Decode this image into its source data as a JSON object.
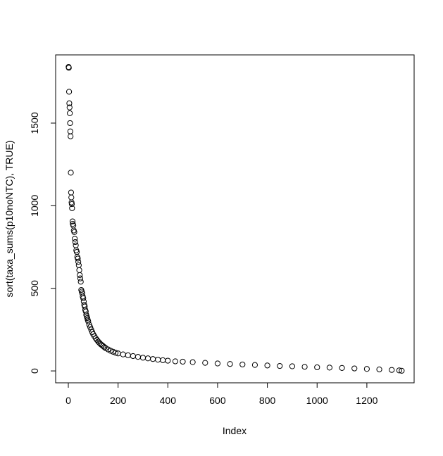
{
  "chart_data": {
    "type": "scatter",
    "x_label": "Index",
    "y_label": "sort(taxa_sums(p10noNTC), TRUE)",
    "x": [
      1,
      2,
      3,
      4,
      5,
      6,
      7,
      8,
      9,
      10,
      11,
      12,
      13,
      14,
      15,
      17,
      18,
      20,
      22,
      24,
      26,
      28,
      30,
      32,
      34,
      36,
      38,
      40,
      42,
      44,
      46,
      48,
      50,
      52,
      54,
      56,
      58,
      60,
      62,
      64,
      66,
      68,
      70,
      72,
      74,
      76,
      78,
      80,
      84,
      88,
      92,
      96,
      100,
      105,
      110,
      115,
      120,
      125,
      130,
      135,
      140,
      145,
      150,
      160,
      170,
      180,
      190,
      200,
      220,
      240,
      260,
      280,
      300,
      320,
      340,
      360,
      380,
      400,
      430,
      460,
      500,
      550,
      600,
      650,
      700,
      750,
      800,
      850,
      900,
      950,
      1000,
      1050,
      1100,
      1150,
      1200,
      1250,
      1300,
      1330,
      1340
    ],
    "values": [
      1840,
      1835,
      1690,
      1620,
      1595,
      1560,
      1500,
      1450,
      1420,
      1200,
      1080,
      1050,
      1020,
      1010,
      985,
      905,
      890,
      880,
      850,
      840,
      800,
      780,
      760,
      730,
      720,
      690,
      680,
      660,
      640,
      610,
      580,
      560,
      540,
      490,
      480,
      470,
      450,
      440,
      420,
      400,
      390,
      370,
      360,
      340,
      330,
      320,
      310,
      300,
      280,
      265,
      250,
      235,
      222,
      210,
      198,
      188,
      178,
      170,
      162,
      156,
      150,
      144,
      138,
      130,
      122,
      116,
      110,
      106,
      100,
      95,
      90,
      85,
      80,
      76,
      72,
      68,
      65,
      62,
      58,
      56,
      53,
      49,
      45,
      42,
      39,
      36,
      33,
      30,
      28,
      25,
      22,
      20,
      18,
      15,
      12,
      9,
      6,
      3,
      1
    ],
    "color": "#000000",
    "xlim": [
      -51,
      1390
    ],
    "xticks": [
      0,
      200,
      400,
      600,
      800,
      1000,
      1200
    ],
    "ylim": [
      -72,
      1913
    ],
    "yticks": [
      0,
      500,
      1000,
      1500
    ]
  }
}
